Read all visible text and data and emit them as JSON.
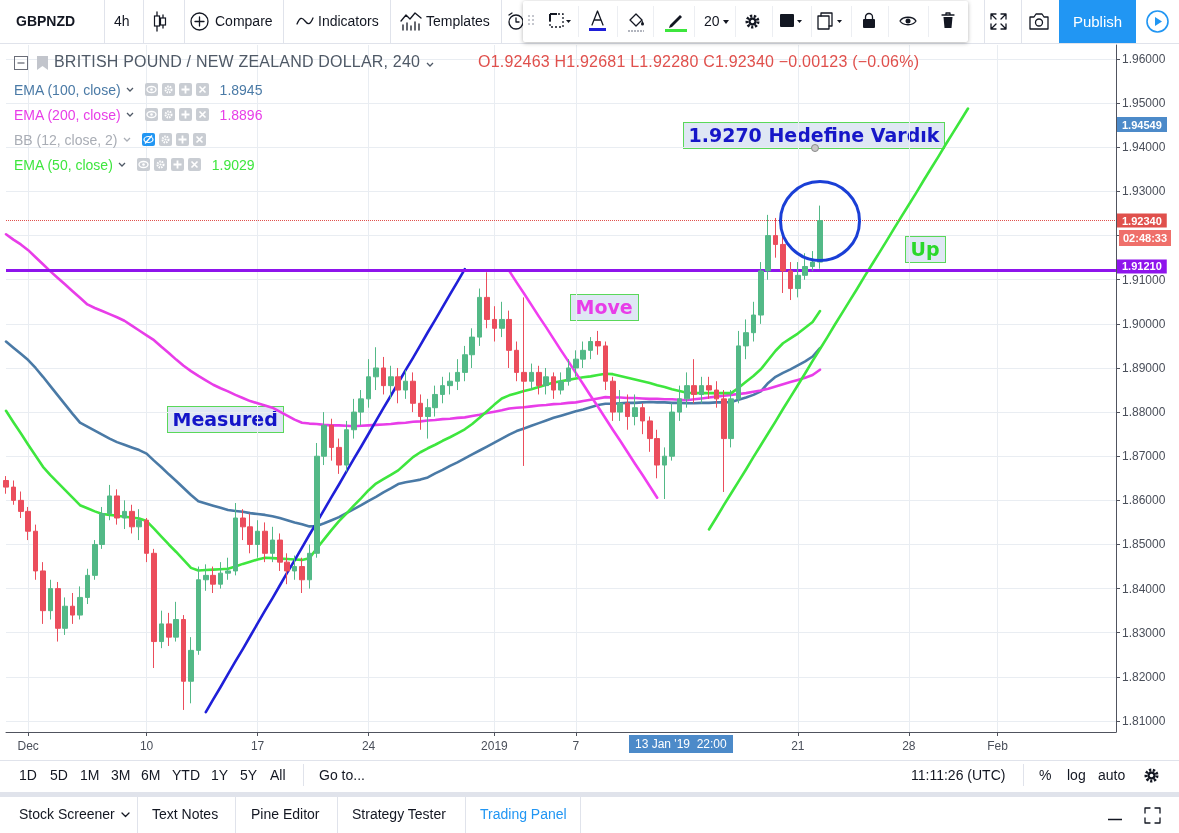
{
  "chart_data": {
    "type": "candlestick",
    "title": "BRITISH POUND / NEW ZEALAND DOLLAR, 240",
    "subtitle": "O1.92463 H1.92681 L1.92280 C1.92340 −0.00123 (−0.06%)",
    "categories": [
      null,
      null,
      null,
      "Dec",
      null,
      null,
      null,
      null,
      null,
      null,
      null,
      null,
      null,
      null,
      null,
      null,
      null,
      null,
      null,
      "10",
      null,
      null,
      null,
      null,
      null,
      null,
      null,
      null,
      null,
      null,
      null,
      null,
      null,
      null,
      "17",
      null,
      null,
      null,
      null,
      null,
      null,
      null,
      null,
      null,
      null,
      null,
      null,
      null,
      null,
      "24",
      null,
      null,
      null,
      null,
      null,
      null,
      null,
      null,
      null,
      null,
      null,
      null,
      null,
      null,
      null,
      null,
      "2019",
      null,
      null,
      null,
      null,
      null,
      null,
      null,
      null,
      null,
      null,
      "7",
      null,
      null,
      null,
      null,
      null,
      null,
      null,
      null,
      null,
      null,
      null,
      null,
      null,
      null,
      null,
      null,
      null,
      null,
      null,
      null,
      null,
      null,
      null,
      null,
      null,
      null,
      null,
      null,
      null,
      "21",
      null,
      null,
      null,
      null,
      null,
      null,
      null,
      null,
      null,
      null,
      null,
      null,
      null,
      null,
      "28",
      null,
      null,
      null,
      null,
      null,
      null,
      null,
      null,
      null,
      null,
      null,
      "Feb",
      null,
      null,
      null,
      null,
      null,
      null,
      null,
      null,
      null,
      null,
      null,
      null,
      null,
      null,
      null,
      null
    ],
    "ohlc": [
      [
        1.8645,
        1.8655,
        1.8615,
        1.863
      ],
      [
        1.863,
        1.8645,
        1.859,
        1.86
      ],
      [
        1.86,
        1.862,
        1.856,
        1.8575
      ],
      [
        1.8575,
        1.8585,
        1.851,
        1.853
      ],
      [
        1.853,
        1.8545,
        1.842,
        1.844
      ],
      [
        1.844,
        1.846,
        1.832,
        1.835
      ],
      [
        1.835,
        1.842,
        1.833,
        1.84
      ],
      [
        1.84,
        1.8415,
        1.828,
        1.831
      ],
      [
        1.831,
        1.838,
        1.8295,
        1.836
      ],
      [
        1.836,
        1.839,
        1.832,
        1.834
      ],
      [
        1.834,
        1.8405,
        1.833,
        1.838
      ],
      [
        1.838,
        1.8445,
        1.8365,
        1.843
      ],
      [
        1.843,
        1.851,
        1.842,
        1.85
      ],
      [
        1.85,
        1.8585,
        1.849,
        1.857
      ],
      [
        1.857,
        1.8635,
        1.8555,
        1.861
      ],
      [
        1.861,
        1.8625,
        1.8545,
        1.856
      ],
      [
        1.856,
        1.86,
        1.8535,
        1.8575
      ],
      [
        1.8575,
        1.859,
        1.8525,
        1.854
      ],
      [
        1.854,
        1.858,
        1.851,
        1.8555
      ],
      [
        1.8555,
        1.856,
        1.846,
        1.848
      ],
      [
        1.848,
        1.849,
        1.822,
        1.828
      ],
      [
        1.828,
        1.835,
        1.8265,
        1.832
      ],
      [
        1.832,
        1.8345,
        1.827,
        1.829
      ],
      [
        1.829,
        1.837,
        1.828,
        1.833
      ],
      [
        1.833,
        1.834,
        1.8125,
        1.819
      ],
      [
        1.819,
        1.829,
        1.814,
        1.826
      ],
      [
        1.826,
        1.845,
        1.825,
        1.842
      ],
      [
        1.842,
        1.8455,
        1.8395,
        1.843
      ],
      [
        1.843,
        1.845,
        1.839,
        1.841
      ],
      [
        1.841,
        1.846,
        1.84,
        1.8435
      ],
      [
        1.8435,
        1.847,
        1.842,
        1.844
      ],
      [
        1.844,
        1.8594,
        1.843,
        1.856
      ],
      [
        1.856,
        1.858,
        1.851,
        1.854
      ],
      [
        1.854,
        1.857,
        1.848,
        1.85
      ],
      [
        1.85,
        1.8555,
        1.847,
        1.853
      ],
      [
        1.853,
        1.855,
        1.846,
        1.848
      ],
      [
        1.848,
        1.854,
        1.846,
        1.851
      ],
      [
        1.851,
        1.8525,
        1.844,
        1.846
      ],
      [
        1.846,
        1.848,
        1.841,
        1.844
      ],
      [
        1.844,
        1.8475,
        1.842,
        1.845
      ],
      [
        1.845,
        1.847,
        1.839,
        1.842
      ],
      [
        1.842,
        1.85,
        1.84,
        1.848
      ],
      [
        1.848,
        1.873,
        1.847,
        1.87
      ],
      [
        1.87,
        1.88,
        1.868,
        1.877
      ],
      [
        1.877,
        1.8785,
        1.869,
        1.872
      ],
      [
        1.872,
        1.874,
        1.866,
        1.868
      ],
      [
        1.868,
        1.878,
        1.8665,
        1.876
      ],
      [
        1.876,
        1.883,
        1.874,
        1.88
      ],
      [
        1.88,
        1.885,
        1.877,
        1.883
      ],
      [
        1.883,
        1.892,
        1.881,
        1.888
      ],
      [
        1.888,
        1.8947,
        1.885,
        1.89
      ],
      [
        1.89,
        1.8925,
        1.884,
        1.886
      ],
      [
        1.886,
        1.8905,
        1.883,
        1.888
      ],
      [
        1.888,
        1.89,
        1.882,
        1.885
      ],
      [
        1.885,
        1.8895,
        1.883,
        1.887
      ],
      [
        1.887,
        1.889,
        1.88,
        1.882
      ],
      [
        1.882,
        1.884,
        1.876,
        1.879
      ],
      [
        1.879,
        1.883,
        1.874,
        1.881
      ],
      [
        1.881,
        1.886,
        1.879,
        1.884
      ],
      [
        1.884,
        1.888,
        1.882,
        1.886
      ],
      [
        1.886,
        1.889,
        1.884,
        1.887
      ],
      [
        1.887,
        1.892,
        1.885,
        1.889
      ],
      [
        1.889,
        1.895,
        1.887,
        1.893
      ],
      [
        1.893,
        1.899,
        1.89,
        1.897
      ],
      [
        1.897,
        1.908,
        1.895,
        1.906
      ],
      [
        1.906,
        1.9117,
        1.899,
        1.901
      ],
      [
        1.901,
        1.904,
        1.896,
        1.899
      ],
      [
        1.899,
        1.905,
        1.897,
        1.901
      ],
      [
        1.901,
        1.903,
        1.89,
        1.894
      ],
      [
        1.894,
        1.896,
        1.887,
        1.889
      ],
      [
        1.889,
        1.906,
        1.8678,
        1.887
      ],
      [
        1.887,
        1.891,
        1.885,
        1.889
      ],
      [
        1.889,
        1.8905,
        1.884,
        1.886
      ],
      [
        1.886,
        1.89,
        1.884,
        1.888
      ],
      [
        1.888,
        1.889,
        1.883,
        1.885
      ],
      [
        1.885,
        1.889,
        1.884,
        1.887
      ],
      [
        1.887,
        1.892,
        1.886,
        1.89
      ],
      [
        1.89,
        1.894,
        1.888,
        1.892
      ],
      [
        1.892,
        1.896,
        1.89,
        1.894
      ],
      [
        1.894,
        1.897,
        1.892,
        1.896
      ],
      [
        1.896,
        1.8984,
        1.893,
        1.895
      ],
      [
        1.895,
        1.896,
        1.885,
        1.887
      ],
      [
        1.887,
        1.888,
        1.878,
        1.88
      ],
      [
        1.88,
        1.885,
        1.878,
        1.882
      ],
      [
        1.882,
        1.884,
        1.876,
        1.879
      ],
      [
        1.879,
        1.884,
        1.877,
        1.881
      ],
      [
        1.881,
        1.882,
        1.875,
        1.878
      ],
      [
        1.878,
        1.879,
        1.871,
        1.874
      ],
      [
        1.874,
        1.876,
        1.865,
        1.868
      ],
      [
        1.868,
        1.872,
        1.8603,
        1.87
      ],
      [
        1.87,
        1.882,
        1.869,
        1.88
      ],
      [
        1.88,
        1.886,
        1.878,
        1.883
      ],
      [
        1.883,
        1.889,
        1.881,
        1.886
      ],
      [
        1.886,
        1.892,
        1.882,
        1.884
      ],
      [
        1.884,
        1.888,
        1.882,
        1.886
      ],
      [
        1.886,
        1.888,
        1.883,
        1.885
      ],
      [
        1.885,
        1.887,
        1.881,
        1.883
      ],
      [
        1.883,
        1.885,
        1.8619,
        1.874
      ],
      [
        1.874,
        1.885,
        1.872,
        1.883
      ],
      [
        1.883,
        1.8984,
        1.882,
        1.895
      ],
      [
        1.895,
        1.901,
        1.892,
        1.898
      ],
      [
        1.898,
        1.905,
        1.896,
        1.902
      ],
      [
        1.902,
        1.914,
        1.9,
        1.912
      ],
      [
        1.912,
        1.9247,
        1.91,
        1.92
      ],
      [
        1.92,
        1.924,
        1.915,
        1.918
      ],
      [
        1.918,
        1.92,
        1.907,
        1.912
      ],
      [
        1.912,
        1.914,
        1.9054,
        1.908
      ],
      [
        1.908,
        1.914,
        1.906,
        1.911
      ],
      [
        1.911,
        1.916,
        1.91,
        1.913
      ],
      [
        1.913,
        1.9165,
        1.912,
        1.914
      ],
      [
        1.914,
        1.9268,
        1.9125,
        1.9234
      ],
      null,
      null,
      null,
      null,
      null,
      null,
      null,
      null,
      null,
      null,
      null,
      null,
      null,
      null,
      null,
      null,
      null,
      null,
      null,
      null,
      null,
      null,
      null,
      null,
      null,
      null,
      null,
      null,
      null,
      null,
      null,
      null,
      null,
      null,
      null,
      null,
      null,
      null,
      null,
      null
    ],
    "series": [
      {
        "type": "line",
        "name": "EMA (100, close)",
        "color": "#4a7aa6",
        "values": [
          1.896,
          1.8946,
          1.8932,
          1.8918,
          1.89,
          1.888,
          1.8859,
          1.8838,
          1.8817,
          1.8796,
          1.8776,
          1.8767,
          1.8758,
          1.8749,
          1.874,
          1.8732,
          1.8726,
          1.872,
          1.8714,
          1.8706,
          1.869,
          1.8675,
          1.8659,
          1.8644,
          1.8628,
          1.8612,
          1.8598,
          1.8593,
          1.8588,
          1.8583,
          1.8578,
          1.8576,
          1.8574,
          1.8571,
          1.8569,
          1.8567,
          1.8564,
          1.856,
          1.8555,
          1.855,
          1.8546,
          1.8541,
          1.8542,
          1.8548,
          1.8555,
          1.8562,
          1.8571,
          1.858,
          1.8589,
          1.8599,
          1.8608,
          1.8618,
          1.8627,
          1.8637,
          1.8641,
          1.8644,
          1.8647,
          1.8652,
          1.8661,
          1.8669,
          1.8678,
          1.8686,
          1.8695,
          1.8704,
          1.8713,
          1.8722,
          1.8731,
          1.874,
          1.8749,
          1.8757,
          1.8763,
          1.8769,
          1.8775,
          1.8781,
          1.8787,
          1.8792,
          1.8797,
          1.8802,
          1.8806,
          1.8811,
          1.8816,
          1.8819,
          1.8819,
          1.882,
          1.8821,
          1.8821,
          1.8822,
          1.8823,
          1.8822,
          1.8822,
          1.8821,
          1.8821,
          1.882,
          1.882,
          1.8821,
          1.8821,
          1.8822,
          1.8822,
          1.8823,
          1.8828,
          1.8833,
          1.8839,
          1.8847,
          1.8866,
          1.888,
          1.8889,
          1.8897,
          1.8906,
          1.8915,
          1.8926,
          1.8945,
          null,
          null,
          null,
          null,
          null,
          null,
          null,
          null,
          null,
          null,
          null,
          null,
          null,
          null,
          null,
          null,
          null,
          null,
          null,
          null,
          null,
          null,
          null,
          null,
          null,
          null,
          null,
          null,
          null,
          null,
          null,
          null,
          null,
          null,
          null,
          null,
          null,
          null,
          null,
          null
        ]
      },
      {
        "type": "line",
        "name": "EMA (200, close)",
        "color": "#e83de8",
        "values": [
          1.9203,
          1.9191,
          1.918,
          1.9167,
          1.9151,
          1.9135,
          1.9119,
          1.9104,
          1.9089,
          1.9074,
          1.9059,
          1.9044,
          1.9036,
          1.9029,
          1.9022,
          1.9015,
          1.9007,
          1.8996,
          1.8985,
          1.8974,
          1.8963,
          1.8948,
          1.8934,
          1.8919,
          1.8905,
          1.8893,
          1.8882,
          1.8872,
          1.8862,
          1.8854,
          1.8847,
          1.8839,
          1.8832,
          1.8825,
          1.882,
          1.8815,
          1.881,
          1.8801,
          1.8792,
          1.8783,
          1.8776,
          1.8774,
          1.8773,
          1.8771,
          1.877,
          1.877,
          1.8769,
          1.8768,
          1.8769,
          1.877,
          1.8771,
          1.8772,
          1.8773,
          1.8775,
          1.8776,
          1.8778,
          1.8779,
          1.8781,
          1.8782,
          1.8784,
          1.8785,
          1.8787,
          1.8788,
          1.8791,
          1.8794,
          1.8798,
          1.8801,
          1.8804,
          1.8808,
          1.881,
          1.8811,
          1.8813,
          1.8815,
          1.8816,
          1.8818,
          1.8819,
          1.8821,
          1.8822,
          1.8825,
          1.8828,
          1.8831,
          1.8834,
          1.8833,
          1.8833,
          1.8832,
          1.8832,
          1.8831,
          1.883,
          1.883,
          1.8829,
          1.8829,
          1.8828,
          1.8827,
          1.8829,
          1.8831,
          1.8833,
          1.8835,
          1.8837,
          1.8839,
          1.8841,
          1.8843,
          1.8846,
          1.8849,
          1.8853,
          1.8858,
          1.8863,
          1.8868,
          1.8873,
          1.8878,
          1.8884,
          1.8896,
          null,
          null,
          null,
          null,
          null,
          null,
          null,
          null,
          null,
          null,
          null,
          null,
          null,
          null,
          null,
          null,
          null,
          null,
          null,
          null,
          null,
          null,
          null,
          null,
          null,
          null,
          null,
          null,
          null,
          null,
          null,
          null,
          null,
          null,
          null,
          null,
          null,
          null,
          null,
          null
        ]
      },
      {
        "type": "line",
        "name": "EMA (50, close)",
        "color": "#3ee63e",
        "values": [
          1.8803,
          1.8777,
          1.8752,
          1.8726,
          1.8701,
          1.8676,
          1.8657,
          1.864,
          1.8623,
          1.8606,
          1.8589,
          1.8582,
          1.8575,
          1.8569,
          1.8567,
          1.8565,
          1.8563,
          1.8561,
          1.8559,
          1.8553,
          1.8536,
          1.8518,
          1.85,
          1.8483,
          1.8465,
          1.8447,
          1.8441,
          1.8442,
          1.8443,
          1.8444,
          1.8445,
          1.845,
          1.8456,
          1.8461,
          1.8466,
          1.847,
          1.8469,
          1.8468,
          1.8467,
          1.8466,
          1.8465,
          1.8469,
          1.8491,
          1.8512,
          1.8533,
          1.8553,
          1.857,
          1.8588,
          1.8605,
          1.8623,
          1.8638,
          1.8648,
          1.8658,
          1.8668,
          1.8683,
          1.8698,
          1.8709,
          1.8718,
          1.8726,
          1.8735,
          1.8743,
          1.8752,
          1.8761,
          1.8773,
          1.8787,
          1.8802,
          1.8817,
          1.8831,
          1.8838,
          1.8843,
          1.8848,
          1.8852,
          1.8857,
          1.8862,
          1.8867,
          1.887,
          1.8873,
          1.8876,
          1.8879,
          1.8881,
          1.8884,
          1.8887,
          1.8886,
          1.8882,
          1.8878,
          1.8874,
          1.887,
          1.8866,
          1.8861,
          1.8857,
          1.8852,
          1.8848,
          1.8844,
          1.8843,
          1.8843,
          1.8843,
          1.8843,
          1.8843,
          1.8843,
          1.8855,
          1.8869,
          1.8882,
          1.8897,
          1.8918,
          1.8939,
          1.8956,
          1.8967,
          1.8978,
          1.8991,
          1.9004,
          1.9029,
          null,
          null,
          null,
          null,
          null,
          null,
          null,
          null,
          null,
          null,
          null,
          null,
          null,
          null,
          null,
          null,
          null,
          null,
          null,
          null,
          null,
          null,
          null,
          null,
          null,
          null,
          null,
          null,
          null,
          null,
          null,
          null,
          null,
          null,
          null,
          null,
          null,
          null,
          null,
          null
        ]
      },
      {
        "type": "line",
        "color": "#1f1fd8",
        "values": [
          null,
          null,
          null,
          null,
          null,
          null,
          null,
          null,
          null,
          null,
          null,
          null,
          null,
          null,
          null,
          null,
          null,
          null,
          null,
          null,
          null,
          null,
          null,
          null,
          null,
          null,
          null,
          1.812,
          1.8149,
          1.8177,
          1.8206,
          1.8235,
          1.8263,
          1.8292,
          1.8321,
          1.835,
          1.8378,
          1.8407,
          1.8436,
          1.8464,
          1.8493,
          1.8522,
          1.855,
          1.8579,
          1.8608,
          1.8636,
          1.8665,
          1.8694,
          1.8722,
          1.8751,
          1.878,
          1.8809,
          1.8837,
          1.8866,
          1.8895,
          1.8923,
          1.8952,
          1.8981,
          1.9009,
          1.9038,
          1.9067,
          1.9095,
          1.9124,
          null,
          null,
          null,
          null,
          null,
          null,
          null,
          null,
          null,
          null,
          null,
          null,
          null,
          null,
          null,
          null,
          null,
          null,
          null,
          null,
          null,
          null,
          null,
          null,
          null,
          null,
          null,
          null,
          null,
          null,
          null,
          null,
          null,
          null,
          null,
          null,
          null,
          null,
          null,
          null,
          null,
          null,
          null,
          null,
          null,
          null,
          null,
          null,
          null,
          null,
          null,
          null,
          null,
          null,
          null,
          null,
          null,
          null,
          null,
          null,
          null,
          null,
          null,
          null,
          null,
          null,
          null,
          null,
          null,
          null,
          null,
          null,
          null,
          null,
          null,
          null,
          null,
          null,
          null,
          null,
          null,
          null,
          null,
          null,
          null,
          null,
          null,
          null
        ]
      },
      {
        "type": "line",
        "color": "#f03ef0",
        "values": [
          null,
          null,
          null,
          null,
          null,
          null,
          null,
          null,
          null,
          null,
          null,
          null,
          null,
          null,
          null,
          null,
          null,
          null,
          null,
          null,
          null,
          null,
          null,
          null,
          null,
          null,
          null,
          null,
          null,
          null,
          null,
          null,
          null,
          null,
          null,
          null,
          null,
          null,
          null,
          null,
          null,
          null,
          null,
          null,
          null,
          null,
          null,
          null,
          null,
          null,
          null,
          null,
          null,
          null,
          null,
          null,
          null,
          null,
          null,
          null,
          null,
          null,
          null,
          null,
          null,
          null,
          null,
          null,
          1.912,
          1.9094,
          1.9069,
          1.9043,
          1.9017,
          1.8992,
          1.8966,
          1.894,
          1.8915,
          1.8889,
          1.8863,
          1.8837,
          1.8812,
          1.8786,
          1.876,
          1.8735,
          1.8709,
          1.8683,
          1.8658,
          1.8632,
          1.8606,
          null,
          null,
          null,
          null,
          null,
          null,
          null,
          null,
          null,
          null,
          null,
          null,
          null,
          null,
          null,
          null,
          null,
          null,
          null,
          null,
          null,
          null,
          null,
          null,
          null,
          null,
          null,
          null,
          null,
          null,
          null,
          null,
          null,
          null,
          null,
          null,
          null,
          null,
          null,
          null,
          null,
          null,
          null,
          null,
          null,
          null,
          null,
          null,
          null,
          null,
          null,
          null,
          null,
          null,
          null,
          null,
          null,
          null,
          null,
          null,
          null,
          null
        ]
      },
      {
        "type": "line",
        "color": "#3de63d",
        "values": [
          null,
          null,
          null,
          null,
          null,
          null,
          null,
          null,
          null,
          null,
          null,
          null,
          null,
          null,
          null,
          null,
          null,
          null,
          null,
          null,
          null,
          null,
          null,
          null,
          null,
          null,
          null,
          null,
          null,
          null,
          null,
          null,
          null,
          null,
          null,
          null,
          null,
          null,
          null,
          null,
          null,
          null,
          null,
          null,
          null,
          null,
          null,
          null,
          null,
          null,
          null,
          null,
          null,
          null,
          null,
          null,
          null,
          null,
          null,
          null,
          null,
          null,
          null,
          null,
          null,
          null,
          null,
          null,
          null,
          null,
          null,
          null,
          null,
          null,
          null,
          null,
          null,
          null,
          null,
          null,
          null,
          null,
          null,
          null,
          null,
          null,
          null,
          null,
          null,
          null,
          null,
          null,
          null,
          null,
          null,
          1.8534,
          1.8561,
          1.8589,
          1.8616,
          1.8643,
          1.867,
          1.8698,
          1.8725,
          1.8752,
          1.8779,
          1.8807,
          1.8834,
          1.8861,
          1.8888,
          1.8916,
          1.8943,
          1.897,
          1.8998,
          1.9025,
          1.9052,
          1.9079,
          1.9107,
          1.9134,
          1.9161,
          1.9188,
          1.9216,
          1.9243,
          1.927,
          1.9297,
          1.9325,
          1.9352,
          1.9379,
          1.9407,
          1.9434,
          1.9461,
          1.9488,
          null,
          null,
          null,
          null,
          null,
          null,
          null,
          null,
          null,
          null,
          null,
          null,
          null,
          null,
          null,
          null,
          null,
          null,
          null,
          null
        ]
      }
    ],
    "ylim": [
      1.8075,
      1.9632
    ],
    "yticks": [
      {
        "value": 1.81,
        "label": "1.81000"
      },
      {
        "value": 1.82,
        "label": "1.82000"
      },
      {
        "value": 1.83,
        "label": "1.83000"
      },
      {
        "value": 1.84,
        "label": "1.84000"
      },
      {
        "value": 1.85,
        "label": "1.85000"
      },
      {
        "value": 1.86,
        "label": "1.86000"
      },
      {
        "value": 1.87,
        "label": "1.87000"
      },
      {
        "value": 1.88,
        "label": "1.88000"
      },
      {
        "value": 1.89,
        "label": "1.89000"
      },
      {
        "value": 1.9,
        "label": "1.90000"
      },
      {
        "value": 1.91,
        "label": "1.91000"
      },
      {
        "value": 1.92,
        "label": null
      },
      {
        "value": 1.93,
        "label": "1.93000"
      },
      {
        "value": 1.94,
        "label": "1.94000"
      },
      {
        "value": 1.95,
        "label": "1.95000"
      },
      {
        "value": 1.96,
        "label": "1.96000"
      }
    ],
    "ref_lines": [
      {
        "axis": "y",
        "value": 1.9121,
        "label": "1.91210",
        "color": "#8e14ec"
      },
      {
        "axis": "y",
        "value": 1.9234,
        "label": "1.92340",
        "color": "#e0504c",
        "line_style": "dotted"
      }
    ],
    "grid": true,
    "legend": "top left",
    "annotations": [
      "GBPNZD",
      "4h",
      "Compare",
      "Indicators",
      "Templates",
      "20",
      "Publish",
      "1.8945",
      "1.8896",
      "BB (12, close, 2)",
      "1.9029",
      "Measured",
      "Move",
      "Up",
      "1.9270 Hedefine Vardık",
      "1.94549",
      "13 Jan '19  22:00",
      "02:48:33",
      "1D",
      "5D",
      "1M",
      "3M",
      "6M",
      "YTD",
      "1Y",
      "5Y",
      "All",
      "Go to...",
      "11:11:26 (UTC)",
      "%",
      "log",
      "auto",
      "Stock Screener",
      "Text Notes",
      "Pine Editor",
      "Strategy Tester",
      "Trading Panel"
    ]
  }
}
